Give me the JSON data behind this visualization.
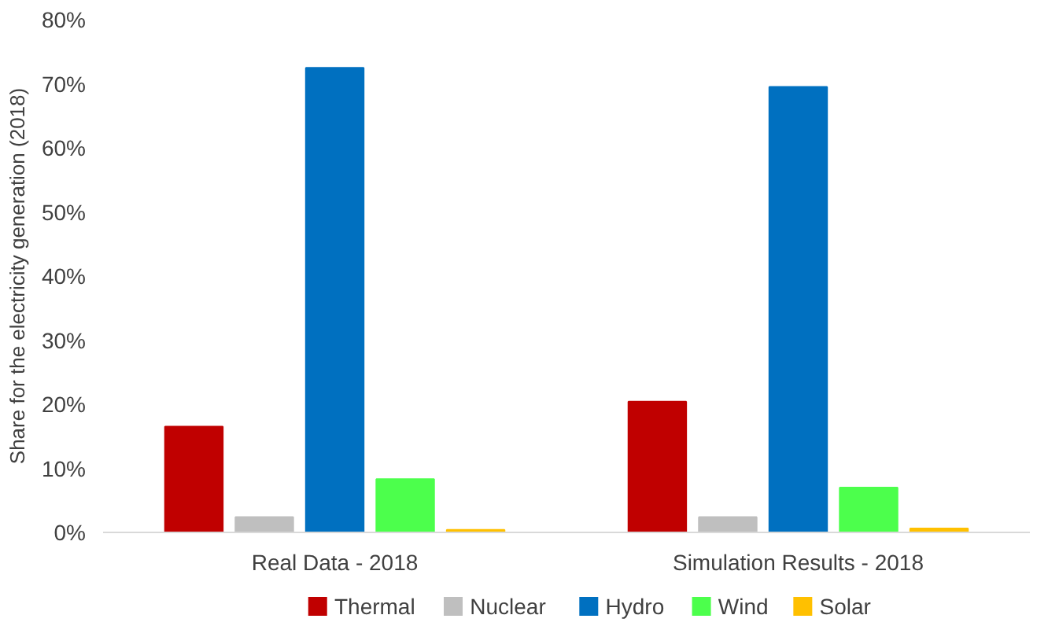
{
  "chart_data": {
    "type": "bar",
    "ylabel": "Share for the electricity generation (2018)",
    "categories": [
      "Real Data - 2018",
      "Simulation Results - 2018"
    ],
    "series": [
      {
        "name": "Thermal",
        "color": "#c00000",
        "values": [
          16.5,
          20.4
        ]
      },
      {
        "name": "Nuclear",
        "color": "#bfbfbf",
        "values": [
          2.4,
          2.4
        ]
      },
      {
        "name": "Hydro",
        "color": "#0070c0",
        "values": [
          72.5,
          69.5
        ]
      },
      {
        "name": "Wind",
        "color": "#4cff4c",
        "values": [
          8.3,
          7.0
        ]
      },
      {
        "name": "Solar",
        "color": "#ffc000",
        "values": [
          0.4,
          0.6
        ]
      }
    ],
    "ylim": [
      0,
      80
    ],
    "yticks": [
      {
        "value": 0,
        "label": "0%"
      },
      {
        "value": 10,
        "label": "10%"
      },
      {
        "value": 20,
        "label": "20%"
      },
      {
        "value": 30,
        "label": "30%"
      },
      {
        "value": 40,
        "label": "40%"
      },
      {
        "value": 50,
        "label": "50%"
      },
      {
        "value": 60,
        "label": "60%"
      },
      {
        "value": 70,
        "label": "70%"
      },
      {
        "value": 80,
        "label": "80%"
      }
    ],
    "grid": false,
    "legend": "bottom"
  }
}
